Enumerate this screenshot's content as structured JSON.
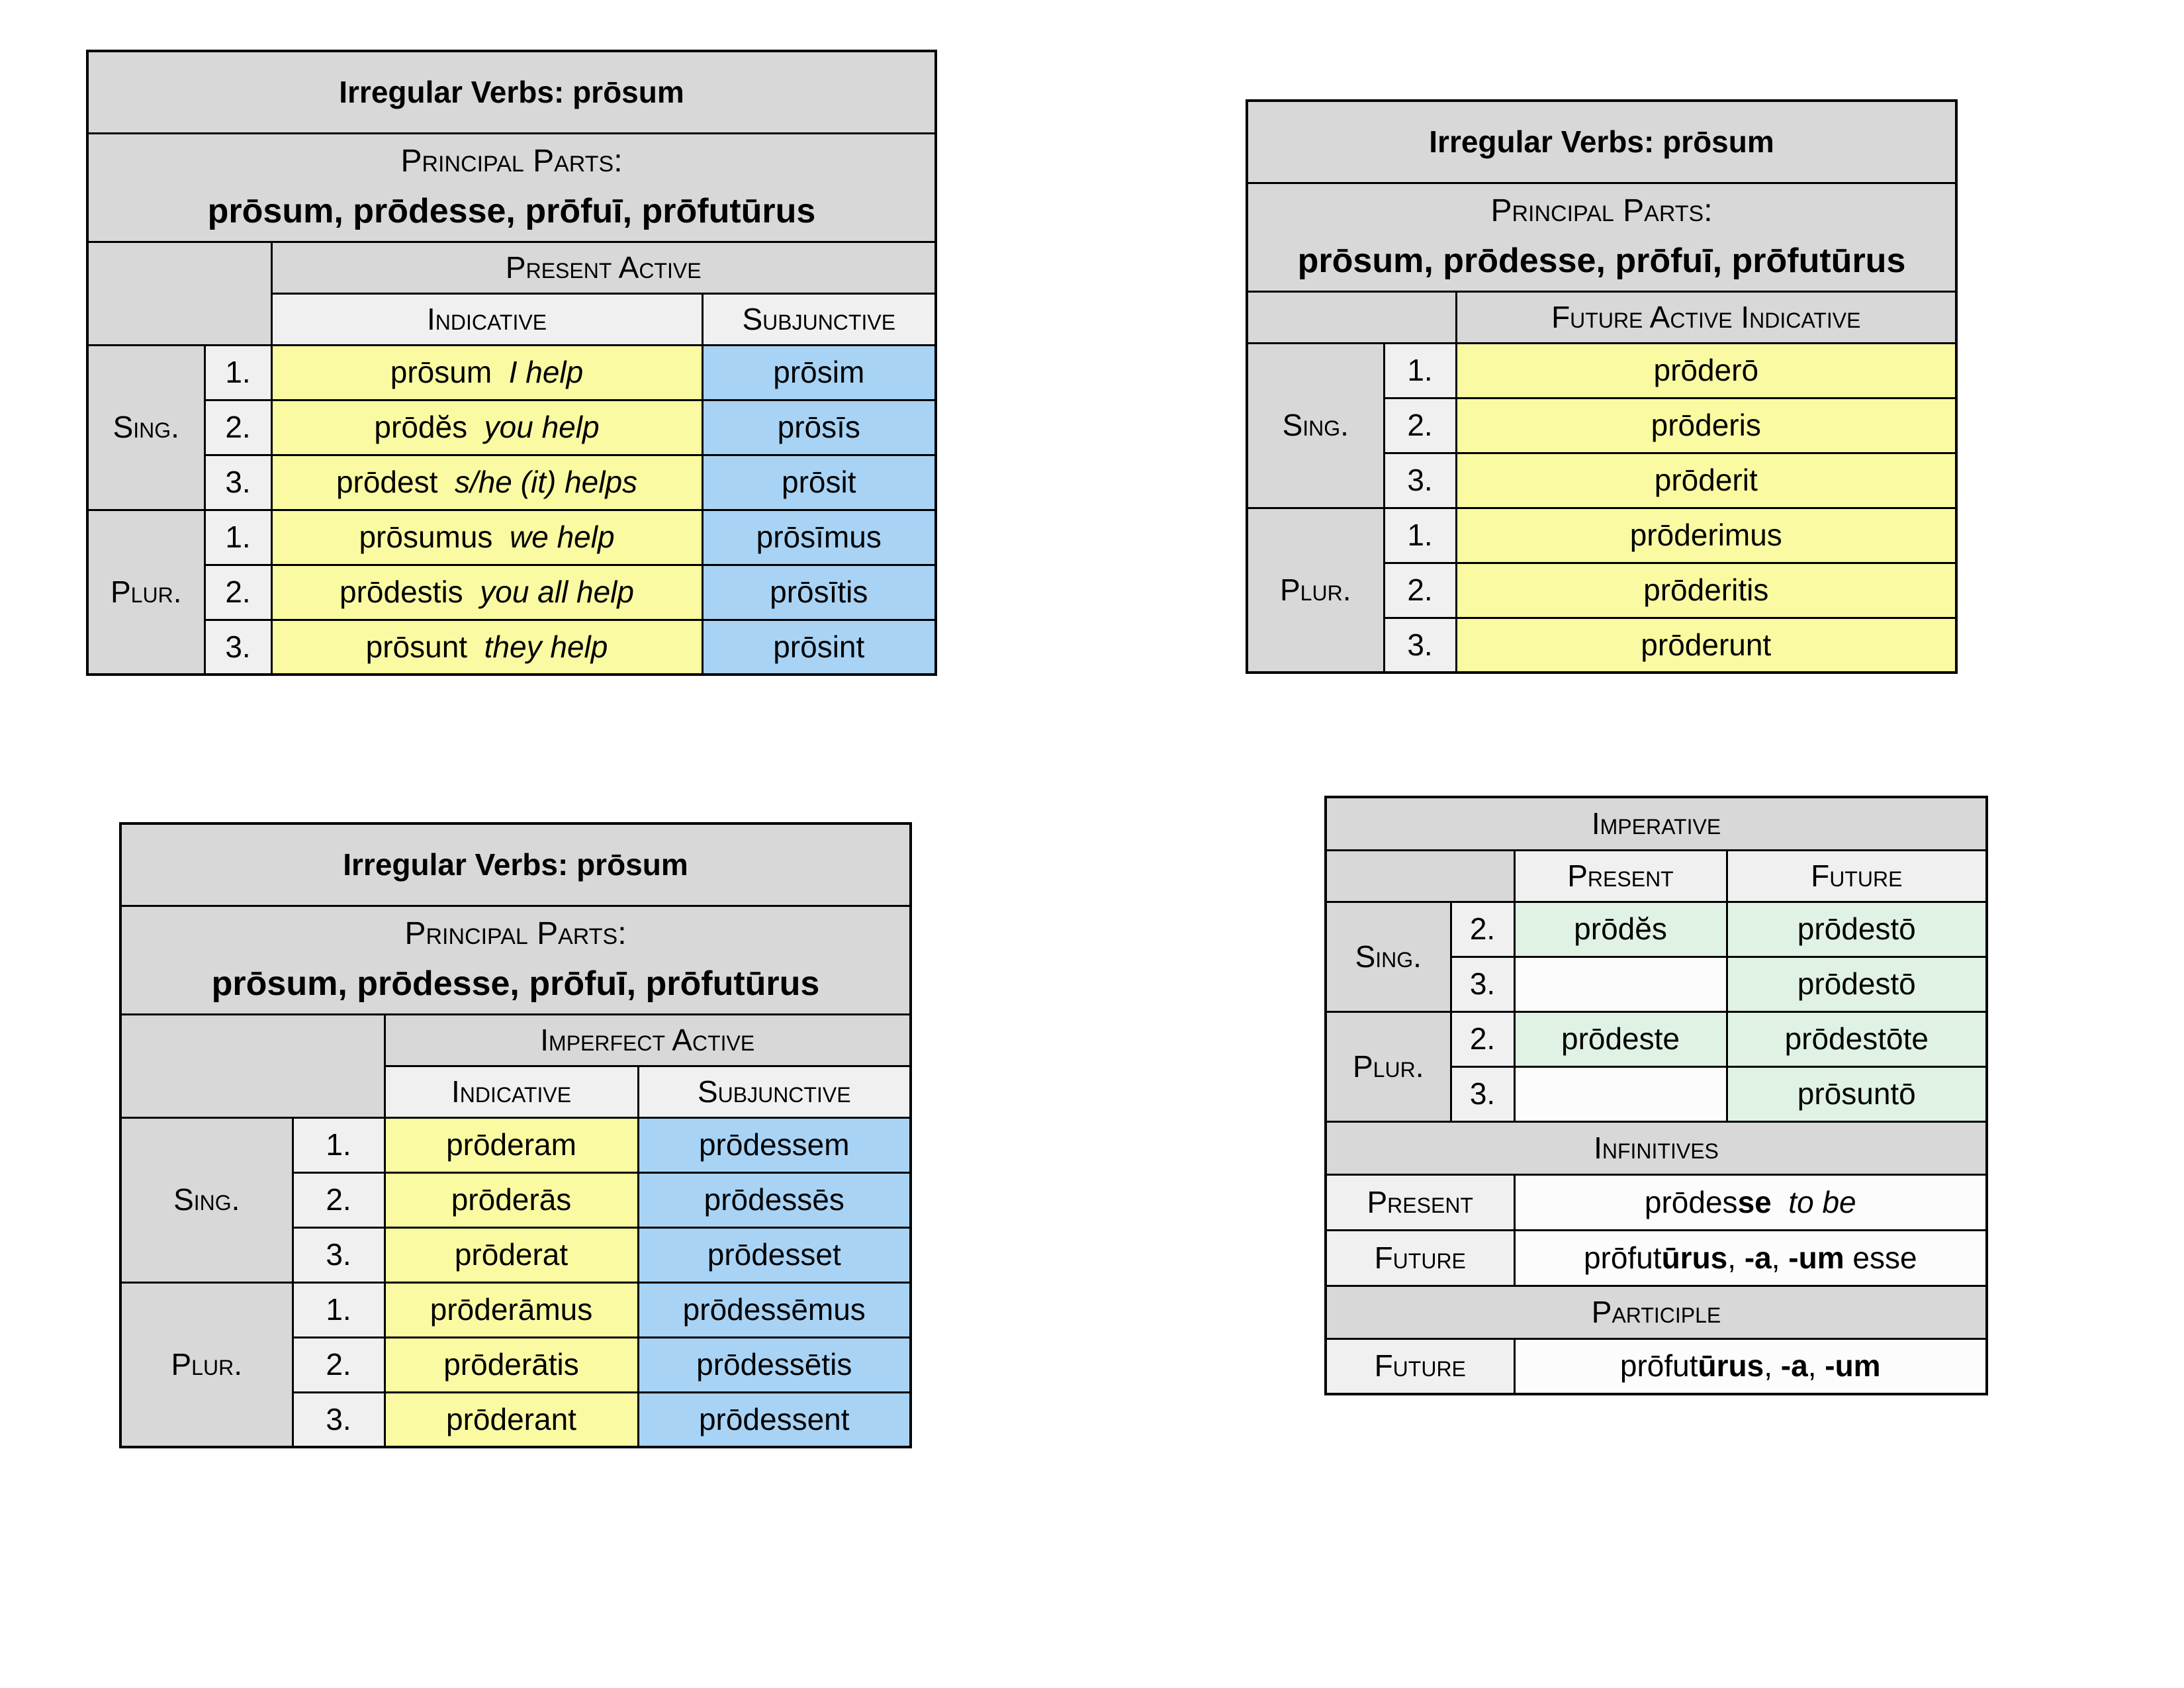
{
  "colors": {
    "page_bg": "#ffffff",
    "header_gray": "#d8d8d8",
    "subheader_gray": "#f0f0f0",
    "yellow": "#fafaa2",
    "blue": "#a8d3f5",
    "green": "#dff2e4",
    "white_cell": "#fcfcfc",
    "border": "#000000"
  },
  "present_table": {
    "title": "Irregular Verbs: prōsum",
    "principal_parts_label": "Principal Parts:",
    "principal_parts": "prōsum, prōdesse, prōfuī, prōfutūrus",
    "tense_header": "Present Active",
    "mood_headers": {
      "indicative": "Indicative",
      "subjunctive": "Subjunctive"
    },
    "groups": [
      {
        "label": "Sing.",
        "rows": [
          {
            "num": "1.",
            "indicative": [
              {
                "t": "prōsum  "
              },
              {
                "t": "I help",
                "i": true
              }
            ],
            "subjunctive": "prōsim"
          },
          {
            "num": "2.",
            "indicative": [
              {
                "t": "prōdĕs  "
              },
              {
                "t": "you help",
                "i": true
              }
            ],
            "subjunctive": "prōsīs"
          },
          {
            "num": "3.",
            "indicative": [
              {
                "t": "prōdest  "
              },
              {
                "t": "s/he (it) helps",
                "i": true
              }
            ],
            "subjunctive": "prōsit"
          }
        ]
      },
      {
        "label": "Plur.",
        "rows": [
          {
            "num": "1.",
            "indicative": [
              {
                "t": "prōsumus  "
              },
              {
                "t": "we help",
                "i": true
              }
            ],
            "subjunctive": "prōsīmus"
          },
          {
            "num": "2.",
            "indicative": [
              {
                "t": "prōdestis  "
              },
              {
                "t": "you all help",
                "i": true
              }
            ],
            "subjunctive": "prōsītis"
          },
          {
            "num": "3.",
            "indicative": [
              {
                "t": "prōsunt  "
              },
              {
                "t": "they help",
                "i": true
              }
            ],
            "subjunctive": "prōsint"
          }
        ]
      }
    ]
  },
  "future_table": {
    "title": "Irregular Verbs: prōsum",
    "principal_parts_label": "Principal Parts:",
    "principal_parts": "prōsum, prōdesse, prōfuī, prōfutūrus",
    "tense_header": "Future Active Indicative",
    "groups": [
      {
        "label": "Sing.",
        "rows": [
          {
            "num": "1.",
            "form": "prōderō"
          },
          {
            "num": "2.",
            "form": "prōderis"
          },
          {
            "num": "3.",
            "form": "prōderit"
          }
        ]
      },
      {
        "label": "Plur.",
        "rows": [
          {
            "num": "1.",
            "form": "prōderimus"
          },
          {
            "num": "2.",
            "form": "prōderitis"
          },
          {
            "num": "3.",
            "form": "prōderunt"
          }
        ]
      }
    ]
  },
  "imperfect_table": {
    "title": "Irregular Verbs: prōsum",
    "principal_parts_label": "Principal Parts:",
    "principal_parts": "prōsum, prōdesse, prōfuī, prōfutūrus",
    "tense_header": "Imperfect Active",
    "mood_headers": {
      "indicative": "Indicative",
      "subjunctive": "Subjunctive"
    },
    "groups": [
      {
        "label": "Sing.",
        "rows": [
          {
            "num": "1.",
            "indicative": "prōderam",
            "subjunctive": "prōdessem"
          },
          {
            "num": "2.",
            "indicative": "prōderās",
            "subjunctive": "prōdessēs"
          },
          {
            "num": "3.",
            "indicative": "prōderat",
            "subjunctive": "prōdesset"
          }
        ]
      },
      {
        "label": "Plur.",
        "rows": [
          {
            "num": "1.",
            "indicative": "prōderāmus",
            "subjunctive": "prōdessēmus"
          },
          {
            "num": "2.",
            "indicative": "prōderātis",
            "subjunctive": "prōdessētis"
          },
          {
            "num": "3.",
            "indicative": "prōderant",
            "subjunctive": "prōdessent"
          }
        ]
      }
    ]
  },
  "imperative_table": {
    "title": "Imperative",
    "col_headers": {
      "present": "Present",
      "future": "Future"
    },
    "groups": [
      {
        "label": "Sing.",
        "rows": [
          {
            "num": "2.",
            "present": "prōdĕs",
            "future": "prōdestō"
          },
          {
            "num": "3.",
            "present": "",
            "future": "prōdestō"
          }
        ]
      },
      {
        "label": "Plur.",
        "rows": [
          {
            "num": "2.",
            "present": "prōdeste",
            "future": "prōdestōte"
          },
          {
            "num": "3.",
            "present": "",
            "future": "prōsuntō"
          }
        ]
      }
    ],
    "infinitives": {
      "header": "Infinitives",
      "rows": [
        {
          "label": "Present",
          "value": [
            {
              "t": "prōdes"
            },
            {
              "t": "se",
              "b": true
            },
            {
              "t": "  "
            },
            {
              "t": "to be",
              "i": true
            }
          ]
        },
        {
          "label": "Future",
          "value": [
            {
              "t": "prōfut"
            },
            {
              "t": "ūrus",
              "b": true
            },
            {
              "t": ", "
            },
            {
              "t": "-a",
              "b": true
            },
            {
              "t": ", "
            },
            {
              "t": "-um",
              "b": true
            },
            {
              "t": " esse"
            }
          ]
        }
      ]
    },
    "participle": {
      "header": "Participle",
      "rows": [
        {
          "label": "Future",
          "value": [
            {
              "t": "prōfut"
            },
            {
              "t": "ūrus",
              "b": true
            },
            {
              "t": ", "
            },
            {
              "t": "-a",
              "b": true
            },
            {
              "t": ", "
            },
            {
              "t": "-um",
              "b": true
            }
          ]
        }
      ]
    }
  }
}
